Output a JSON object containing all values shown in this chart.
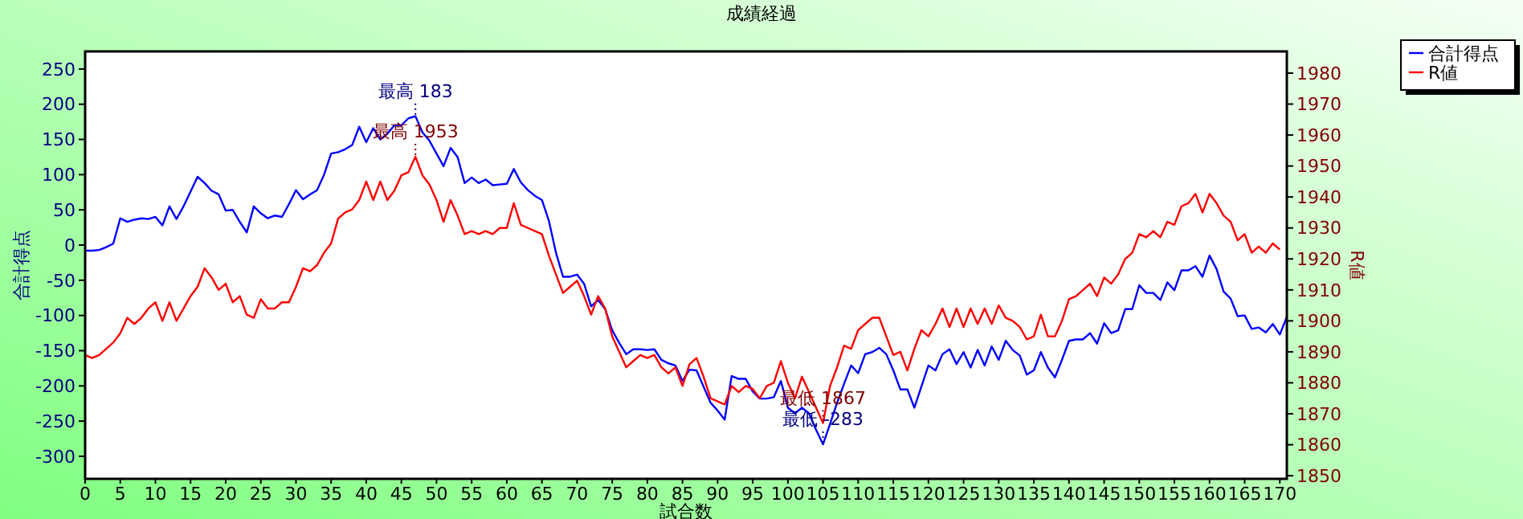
{
  "chart_data": {
    "type": "line",
    "title": "成績経過",
    "xlabel": "試合数",
    "ylabel": "合計得点",
    "y2label": "R値",
    "x": [
      0,
      1,
      2,
      3,
      4,
      5,
      6,
      7,
      8,
      9,
      10,
      11,
      12,
      13,
      14,
      15,
      16,
      17,
      18,
      19,
      20,
      21,
      22,
      23,
      24,
      25,
      26,
      27,
      28,
      29,
      30,
      31,
      32,
      33,
      34,
      35,
      36,
      37,
      38,
      39,
      40,
      41,
      42,
      43,
      44,
      45,
      46,
      47,
      48,
      49,
      50,
      51,
      52,
      53,
      54,
      55,
      56,
      57,
      58,
      59,
      60,
      61,
      62,
      63,
      64,
      65,
      66,
      67,
      68,
      69,
      70,
      71,
      72,
      73,
      74,
      75,
      76,
      77,
      78,
      79,
      80,
      81,
      82,
      83,
      84,
      85,
      86,
      87,
      88,
      89,
      90,
      91,
      92,
      93,
      94,
      95,
      96,
      97,
      98,
      99,
      100,
      101,
      102,
      103,
      104,
      105,
      106,
      107,
      108,
      109,
      110,
      111,
      112,
      113,
      114,
      115,
      116,
      117,
      118,
      119,
      120,
      121,
      122,
      123,
      124,
      125,
      126,
      127,
      128,
      129,
      130,
      131,
      132,
      133,
      134,
      135,
      136,
      137,
      138,
      139,
      140,
      141,
      142,
      143,
      144,
      145,
      146,
      147,
      148,
      149,
      150,
      151,
      152,
      153,
      154,
      155,
      156,
      157,
      158,
      159,
      160,
      161,
      162,
      163,
      164,
      165,
      166,
      167,
      168,
      169,
      170,
      171
    ],
    "series": [
      {
        "name": "合計得点",
        "color": "#0000ff",
        "values": [
          -8,
          -8,
          -7,
          -3,
          2,
          38,
          33,
          36,
          38,
          37,
          40,
          28,
          55,
          37,
          55,
          76,
          97,
          88,
          77,
          72,
          49,
          50,
          33,
          18,
          55,
          45,
          38,
          42,
          40,
          58,
          78,
          65,
          72,
          78,
          100,
          130,
          132,
          136,
          142,
          168,
          146,
          166,
          150,
          158,
          170,
          170,
          180,
          183,
          160,
          148,
          130,
          112,
          138,
          125,
          88,
          96,
          88,
          93,
          85,
          86,
          87,
          108,
          89,
          78,
          70,
          64,
          34,
          -11,
          -45,
          -45,
          -42,
          -55,
          -87,
          -78,
          -91,
          -121,
          -139,
          -155,
          -148,
          -148,
          -149,
          -148,
          -163,
          -168,
          -171,
          -193,
          -177,
          -178,
          -201,
          -224,
          -235,
          -248,
          -186,
          -190,
          -190,
          -208,
          -218,
          -218,
          -216,
          -193,
          -231,
          -239,
          -231,
          -239,
          -262,
          -283,
          -254,
          -224,
          -197,
          -171,
          -182,
          -155,
          -152,
          -146,
          -155,
          -178,
          -205,
          -205,
          -231,
          -201,
          -171,
          -178,
          -155,
          -148,
          -169,
          -152,
          -174,
          -149,
          -171,
          -144,
          -163,
          -136,
          -149,
          -157,
          -184,
          -178,
          -152,
          -174,
          -188,
          -163,
          -136,
          -134,
          -134,
          -125,
          -140,
          -111,
          -125,
          -121,
          -91,
          -91,
          -57,
          -68,
          -68,
          -78,
          -53,
          -64,
          -36,
          -36,
          -30,
          -45,
          -15,
          -34,
          -66,
          -76,
          -101,
          -100,
          -119,
          -117,
          -124,
          -112,
          -127,
          -102
        ]
      },
      {
        "name": "R値",
        "color": "#ff0000",
        "axis": "y2",
        "values": [
          1889,
          1888,
          1889,
          1891,
          1893,
          1896,
          1901,
          1899,
          1901,
          1904,
          1906,
          1900,
          1906,
          1900,
          1904,
          1908,
          1911,
          1917,
          1914,
          1910,
          1912,
          1906,
          1908,
          1902,
          1901,
          1907,
          1904,
          1904,
          1906,
          1906,
          1911,
          1917,
          1916,
          1918,
          1922,
          1925,
          1933,
          1935,
          1936,
          1939,
          1945,
          1939,
          1945,
          1939,
          1942,
          1947,
          1948,
          1953,
          1947,
          1944,
          1939,
          1932,
          1939,
          1934,
          1928,
          1929,
          1928,
          1929,
          1928,
          1930,
          1930,
          1938,
          1931,
          1930,
          1929,
          1928,
          1921,
          1915,
          1909,
          1911,
          1913,
          1908,
          1902,
          1908,
          1904,
          1895,
          1890,
          1885,
          1887,
          1889,
          1888,
          1889,
          1885,
          1883,
          1885,
          1879,
          1886,
          1888,
          1882,
          1875,
          1874,
          1873,
          1879,
          1877,
          1879,
          1878,
          1875,
          1879,
          1880,
          1887,
          1880,
          1875,
          1882,
          1877,
          1872,
          1867,
          1879,
          1885,
          1892,
          1891,
          1897,
          1899,
          1901,
          1901,
          1895,
          1889,
          1890,
          1884,
          1891,
          1897,
          1895,
          1899,
          1904,
          1898,
          1904,
          1898,
          1904,
          1899,
          1904,
          1899,
          1905,
          1901,
          1900,
          1898,
          1894,
          1895,
          1902,
          1895,
          1895,
          1900,
          1907,
          1908,
          1910,
          1912,
          1908,
          1914,
          1912,
          1915,
          1920,
          1922,
          1928,
          1927,
          1929,
          1927,
          1932,
          1931,
          1937,
          1938,
          1941,
          1935,
          1941,
          1938,
          1934,
          1932,
          1926,
          1928,
          1922,
          1924,
          1922,
          1925,
          1923,
          null
        ]
      }
    ],
    "annotations": [
      {
        "text": "最高 183",
        "x": 47,
        "y": 183
      },
      "最高 1953",
      "最低 1867",
      {
        "text": "最低 -283",
        "x": 105,
        "y": -283
      }
    ],
    "xlim": [
      0,
      171
    ],
    "xticks": [
      0,
      5,
      10,
      15,
      20,
      25,
      30,
      35,
      40,
      45,
      50,
      55,
      60,
      65,
      70,
      75,
      80,
      85,
      90,
      95,
      100,
      105,
      110,
      115,
      120,
      125,
      130,
      135,
      140,
      145,
      150,
      155,
      160,
      165,
      170
    ],
    "ylim": [
      -332,
      275
    ],
    "yticks": [
      -300,
      -250,
      -200,
      -150,
      -100,
      -50,
      0,
      50,
      100,
      150,
      200,
      250
    ],
    "y2lim": [
      1849,
      1987
    ],
    "y2ticks": [
      1850,
      1860,
      1870,
      1880,
      1890,
      1900,
      1910,
      1920,
      1930,
      1940,
      1950,
      1960,
      1970,
      1980
    ],
    "grid": false,
    "legend": "top right",
    "marker": "none",
    "line_style": "solid"
  }
}
